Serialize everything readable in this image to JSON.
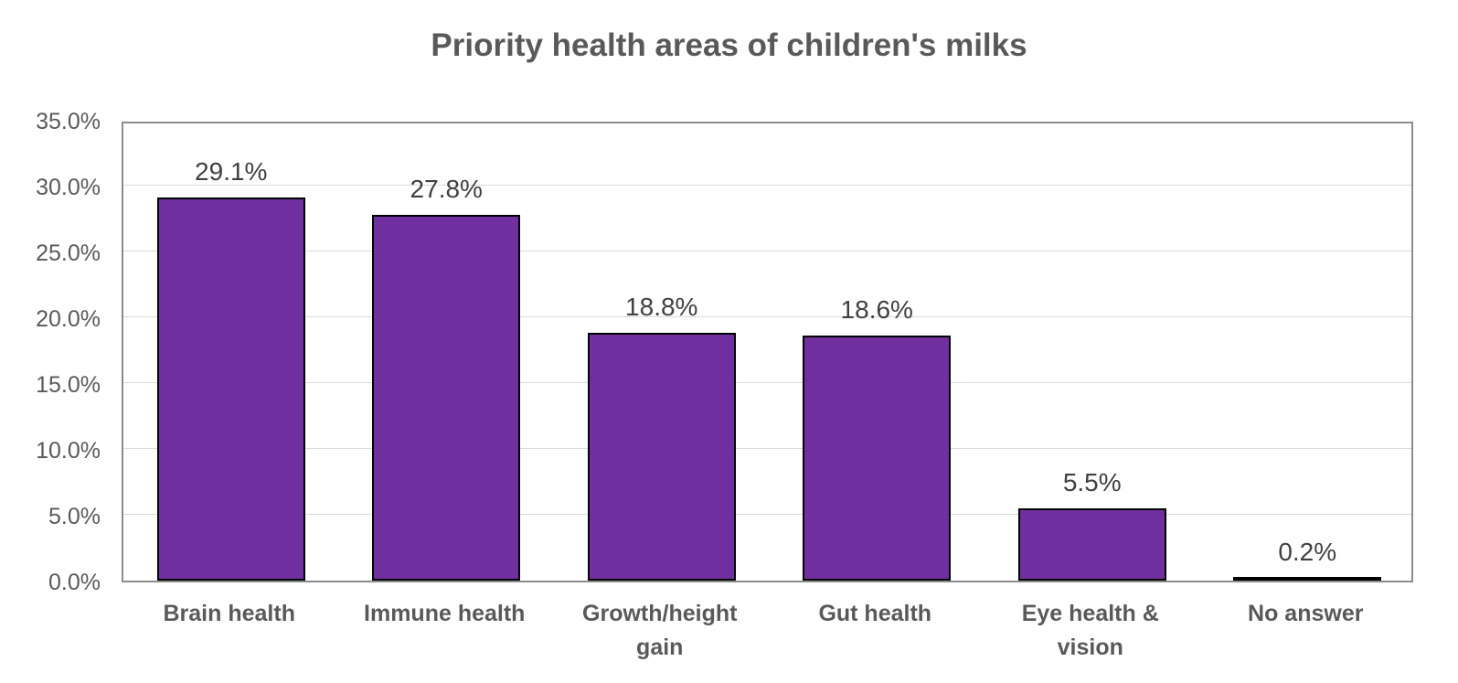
{
  "chart_data": {
    "type": "bar",
    "title": "Priority health areas of children's milks",
    "categories": [
      "Brain health",
      "Immune health",
      "Growth/height gain",
      "Gut health",
      "Eye health & vision",
      "No answer"
    ],
    "values": [
      29.1,
      27.8,
      18.8,
      18.6,
      5.5,
      0.2
    ],
    "data_labels": [
      "29.1%",
      "27.8%",
      "18.8%",
      "18.6%",
      "5.5%",
      "0.2%"
    ],
    "xlabel": "",
    "ylabel": "",
    "ylim": [
      0,
      35
    ],
    "ytick_step": 5,
    "ytick_labels": [
      "0.0%",
      "5.0%",
      "10.0%",
      "15.0%",
      "20.0%",
      "25.0%",
      "30.0%",
      "35.0%"
    ],
    "grid": "horizontal",
    "legend_position": "none",
    "colors": {
      "bar_fill": "#7030A0",
      "bar_border": "#000000",
      "title_text": "#595959",
      "axis_text": "#595959",
      "data_label_text": "#404040",
      "gridline": "#d9d9d9",
      "plot_border": "#8c8c8c"
    }
  }
}
